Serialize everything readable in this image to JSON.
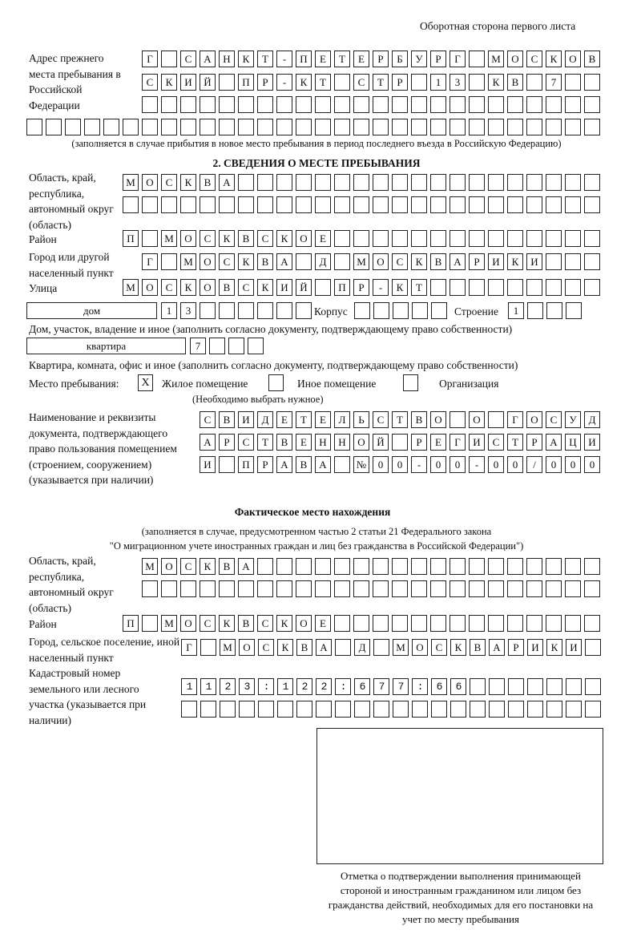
{
  "header": "Оборотная сторона первого листа",
  "previous_address": {
    "label": "Адрес прежнего места пребывания в Российской Федерации",
    "rows": [
      "Г САНКТ-ПЕТЕРБУРГ МОСКОВ",
      "СКИЙ ПР-КТ СТР 13 КВ 7",
      "",
      ""
    ],
    "note": "(заполняется в случае прибытия в новое место пребывания в период последнего въезда в Российскую Федерацию)"
  },
  "section2": {
    "title": "2. СВЕДЕНИЯ О МЕСТЕ ПРЕБЫВАНИЯ",
    "region_label": "Область, край, республика, автономный округ (область)",
    "region_rows": [
      "МОСКВА",
      ""
    ],
    "district_label": "Район",
    "district": "П МОСКВСКОЕ",
    "city_label": "Город или другой населенный пункт",
    "city": "Г МОСКВА Д МОСКВАРИКИ",
    "street_label": "Улица",
    "street": "МОСКОВСКИЙ ПР-КТ",
    "house_type": "дом",
    "house": "13",
    "korpus_label": "Корпус",
    "korpus": "",
    "building_label": "Строение",
    "building": "1",
    "house_note": "Дом, участок, владение и иное (заполнить согласно документу, подтверждающему право собственности)",
    "apt_type": "квартира",
    "apt": "7",
    "apt_note": "Квартира, комната, офис и иное (заполнить согласно документу, подтверждающему право собственности)",
    "place_label": "Место пребывания:",
    "opt_residential": {
      "mark": "X",
      "label": "Жилое помещение",
      "checked": true
    },
    "opt_other": {
      "mark": "",
      "label": "Иное помещение",
      "checked": false
    },
    "opt_org": {
      "mark": "",
      "label": "Организация",
      "checked": false
    },
    "choose_note": "(Необходимо выбрать нужное)",
    "doc_label": "Наименование и реквизиты документа, подтверждающего право пользования помещением (строением, сооружением) (указывается при наличии)",
    "doc_rows": [
      "СВИДЕТЕЛЬСТВО О ГОСУД",
      "АРСТВЕННОЙ РЕГИСТРАЦИ",
      "И ПРАВА №00-00-00/000"
    ]
  },
  "actual": {
    "title": "Фактическое место нахождения",
    "note1": "(заполняется в случае, предусмотренном частью 2 статьи 21 Федерального закона",
    "note2": "\"О миграционном учете иностранных граждан и лиц без гражданства в Российской Федерации\")",
    "region_label": "Область, край, республика, автономный округ (область)",
    "region_rows": [
      "МОСКВА",
      ""
    ],
    "district_label": "Район",
    "district": "П МОСКВСКОЕ",
    "city_label": "Город, сельское поселение, иной населенный пункт",
    "city": "Г МОСКВА Д МОСКВАРИКИ",
    "cadastral_label": "Кадастровый номер земельного или лесного участка (указывается при наличии)",
    "cadastral_rows": [
      "1123:122:677:66",
      ""
    ]
  },
  "stamp_caption": "Отметка о подтверждении выполнения принимающей стороной и иностранным гражданином или лицом без гражданства действий, необходимых для его постановки на учет по месту пребывания"
}
